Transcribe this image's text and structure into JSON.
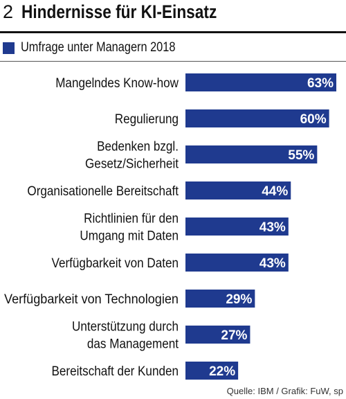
{
  "header": {
    "number": "2",
    "title": "Hindernisse für KI-Einsatz"
  },
  "legend": {
    "label": "Umfrage unter Managern 2018"
  },
  "source": "Quelle: IBM / Grafik: FuW, sp",
  "colors": {
    "bar": "#1f3a8f",
    "bar_label": "#ffffff",
    "text": "#111111"
  },
  "chart_data": {
    "type": "bar",
    "orientation": "horizontal",
    "categories": [
      [
        "Mangelndes Know-how"
      ],
      [
        "Regulierung"
      ],
      [
        "Bedenken bzgl.",
        "Gesetz/Sicherheit"
      ],
      [
        "Organisationelle Bereitschaft"
      ],
      [
        "Richtlinien für den",
        "Umgang mit Daten"
      ],
      [
        "Verfügbarkeit von Daten"
      ],
      [
        "Verfügbarkeit von Technologien"
      ],
      [
        "Unterstützung durch",
        "das Management"
      ],
      [
        "Bereitschaft der Kunden"
      ]
    ],
    "values": [
      63,
      60,
      55,
      44,
      43,
      43,
      29,
      27,
      22
    ],
    "value_labels": [
      "63%",
      "60%",
      "55%",
      "44%",
      "43%",
      "43%",
      "29%",
      "27%",
      "22%"
    ],
    "unit": "%",
    "xlim": [
      0,
      63
    ],
    "grid": false,
    "legend_position": "top-left"
  }
}
